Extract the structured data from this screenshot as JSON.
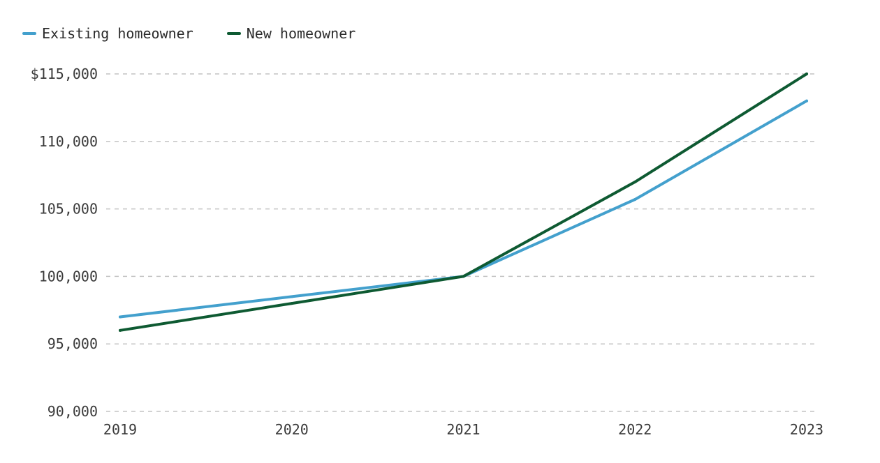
{
  "chart_data": {
    "type": "line",
    "x": [
      "2019",
      "2020",
      "2021",
      "2022",
      "2023"
    ],
    "series": [
      {
        "name": "Existing homeowner",
        "color": "#43a0cd",
        "values": [
          97000,
          98500,
          100000,
          105700,
          113000
        ]
      },
      {
        "name": "New homeowner",
        "color": "#0e5a32",
        "values": [
          96000,
          98000,
          100000,
          107000,
          115000
        ]
      }
    ],
    "y_ticks": [
      90000,
      95000,
      100000,
      105000,
      110000,
      115000
    ],
    "y_tick_labels": [
      "90,000",
      "95,000",
      "100,000",
      "105,000",
      "110,000",
      "$115,000"
    ],
    "ylim": [
      90000,
      115000
    ],
    "grid": true,
    "grid_style": "dashed",
    "legend_position": "top-left",
    "title": "",
    "xlabel": "",
    "ylabel": ""
  }
}
